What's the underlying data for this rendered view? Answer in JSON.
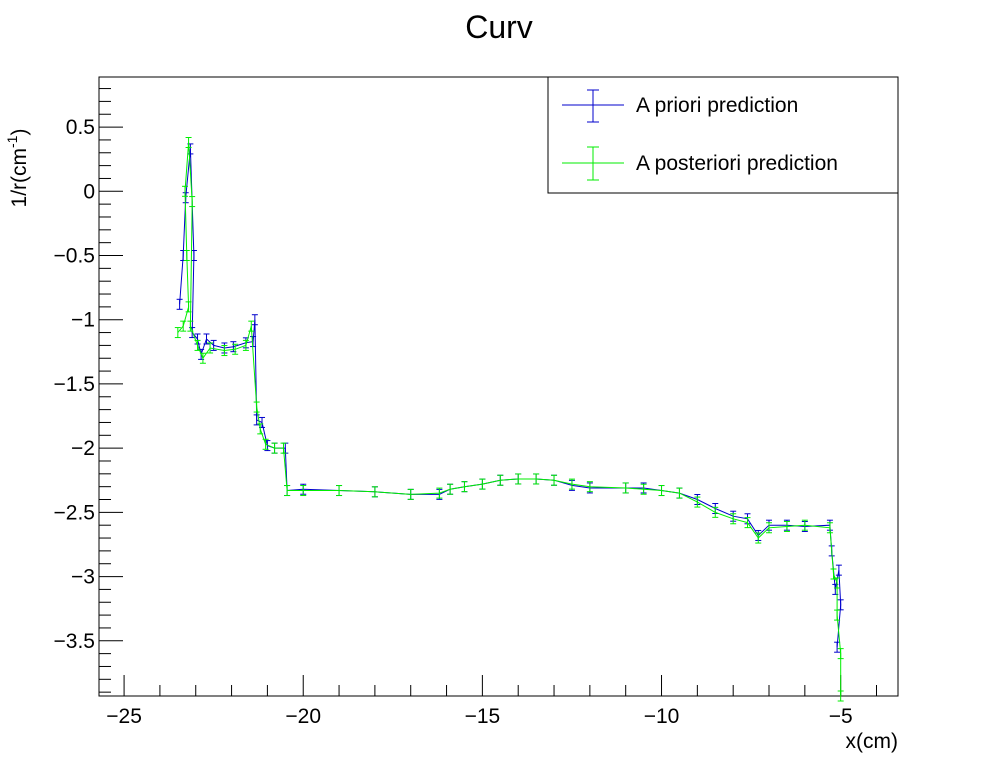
{
  "chart_data": {
    "type": "line",
    "title": "Curv",
    "xlabel": "x(cm)",
    "ylabel": "1/r(cm",
    "ylabel_sup": "-1",
    "ylabel_close": ")",
    "xlim": [
      -25.7,
      -3.4
    ],
    "ylim": [
      -3.93,
      0.89
    ],
    "x_ticks": [
      -25,
      -20,
      -15,
      -10,
      -5
    ],
    "x_tick_labels": [
      "−25",
      "−20",
      "−15",
      "−10",
      "−5"
    ],
    "y_ticks": [
      0.5,
      0,
      -0.5,
      -1,
      -1.5,
      -2,
      -2.5,
      -3,
      -3.5
    ],
    "y_tick_labels": [
      "0.5",
      "0",
      "−0.5",
      "−1",
      "−1.5",
      "−2",
      "−2.5",
      "−3",
      "−3.5"
    ],
    "legend_position": "top-right",
    "series": [
      {
        "name": "A priori prediction",
        "color": "#0000cc",
        "points": [
          [
            -23.45,
            -0.88
          ],
          [
            -23.35,
            -0.5
          ],
          [
            -23.28,
            -0.05
          ],
          [
            -23.15,
            0.33
          ],
          [
            -23.05,
            -0.5
          ],
          [
            -23.1,
            -1.1
          ],
          [
            -22.95,
            -1.15
          ],
          [
            -22.85,
            -1.27
          ],
          [
            -22.7,
            -1.15
          ],
          [
            -22.5,
            -1.2
          ],
          [
            -22.2,
            -1.22
          ],
          [
            -21.95,
            -1.21
          ],
          [
            -21.6,
            -1.18
          ],
          [
            -21.4,
            -1.17
          ],
          [
            -21.35,
            -1.0
          ],
          [
            -21.3,
            -1.78
          ],
          [
            -21.15,
            -1.8
          ],
          [
            -21.0,
            -1.98
          ],
          [
            -20.8,
            -2.0
          ],
          [
            -20.5,
            -2.0
          ],
          [
            -20.45,
            -2.33
          ],
          [
            -20.0,
            -2.32
          ],
          [
            -19.0,
            -2.33
          ],
          [
            -18.0,
            -2.34
          ],
          [
            -17.0,
            -2.36
          ],
          [
            -16.2,
            -2.36
          ],
          [
            -15.9,
            -2.32
          ],
          [
            -15.5,
            -2.3
          ],
          [
            -15.0,
            -2.28
          ],
          [
            -14.5,
            -2.25
          ],
          [
            -14.0,
            -2.24
          ],
          [
            -13.5,
            -2.24
          ],
          [
            -13.0,
            -2.25
          ],
          [
            -12.5,
            -2.29
          ],
          [
            -12.0,
            -2.31
          ],
          [
            -11.0,
            -2.31
          ],
          [
            -10.5,
            -2.31
          ],
          [
            -10.0,
            -2.33
          ],
          [
            -9.5,
            -2.35
          ],
          [
            -9.0,
            -2.4
          ],
          [
            -8.5,
            -2.47
          ],
          [
            -8.0,
            -2.53
          ],
          [
            -7.6,
            -2.55
          ],
          [
            -7.3,
            -2.68
          ],
          [
            -7.0,
            -2.6
          ],
          [
            -6.5,
            -2.6
          ],
          [
            -6.0,
            -2.61
          ],
          [
            -5.3,
            -2.6
          ],
          [
            -5.25,
            -2.8
          ],
          [
            -5.15,
            -3.1
          ],
          [
            -5.05,
            -2.95
          ],
          [
            -5.0,
            -3.22
          ],
          [
            -5.1,
            -3.55
          ]
        ]
      },
      {
        "name": "A posteriori prediction",
        "color": "#00ee00",
        "points": [
          [
            -23.5,
            -1.1
          ],
          [
            -23.35,
            -1.05
          ],
          [
            -23.2,
            -0.9
          ],
          [
            -23.25,
            -0.5
          ],
          [
            -23.3,
            0.0
          ],
          [
            -23.2,
            0.38
          ],
          [
            -23.1,
            -0.08
          ],
          [
            -23.15,
            -1.05
          ],
          [
            -22.95,
            -1.2
          ],
          [
            -22.8,
            -1.3
          ],
          [
            -22.6,
            -1.22
          ],
          [
            -22.2,
            -1.24
          ],
          [
            -21.9,
            -1.23
          ],
          [
            -21.6,
            -1.2
          ],
          [
            -21.45,
            -1.05
          ],
          [
            -21.3,
            -1.68
          ],
          [
            -21.2,
            -1.85
          ],
          [
            -21.05,
            -1.97
          ],
          [
            -20.8,
            -2.0
          ],
          [
            -20.55,
            -2.0
          ],
          [
            -20.45,
            -2.33
          ],
          [
            -20.0,
            -2.33
          ],
          [
            -19.0,
            -2.33
          ],
          [
            -18.0,
            -2.34
          ],
          [
            -17.0,
            -2.36
          ],
          [
            -16.2,
            -2.35
          ],
          [
            -15.9,
            -2.32
          ],
          [
            -15.5,
            -2.3
          ],
          [
            -15.0,
            -2.28
          ],
          [
            -14.5,
            -2.25
          ],
          [
            -14.0,
            -2.24
          ],
          [
            -13.5,
            -2.24
          ],
          [
            -13.0,
            -2.25
          ],
          [
            -12.5,
            -2.28
          ],
          [
            -12.0,
            -2.3
          ],
          [
            -11.0,
            -2.31
          ],
          [
            -10.5,
            -2.32
          ],
          [
            -10.0,
            -2.33
          ],
          [
            -9.5,
            -2.35
          ],
          [
            -9.0,
            -2.42
          ],
          [
            -8.5,
            -2.5
          ],
          [
            -8.0,
            -2.55
          ],
          [
            -7.6,
            -2.58
          ],
          [
            -7.3,
            -2.7
          ],
          [
            -7.0,
            -2.62
          ],
          [
            -6.5,
            -2.61
          ],
          [
            -6.0,
            -2.6
          ],
          [
            -5.3,
            -2.62
          ],
          [
            -5.2,
            -2.98
          ],
          [
            -5.1,
            -3.05
          ],
          [
            -5.1,
            -3.3
          ],
          [
            -5.0,
            -3.6
          ],
          [
            -5.0,
            -3.93
          ]
        ]
      }
    ]
  }
}
